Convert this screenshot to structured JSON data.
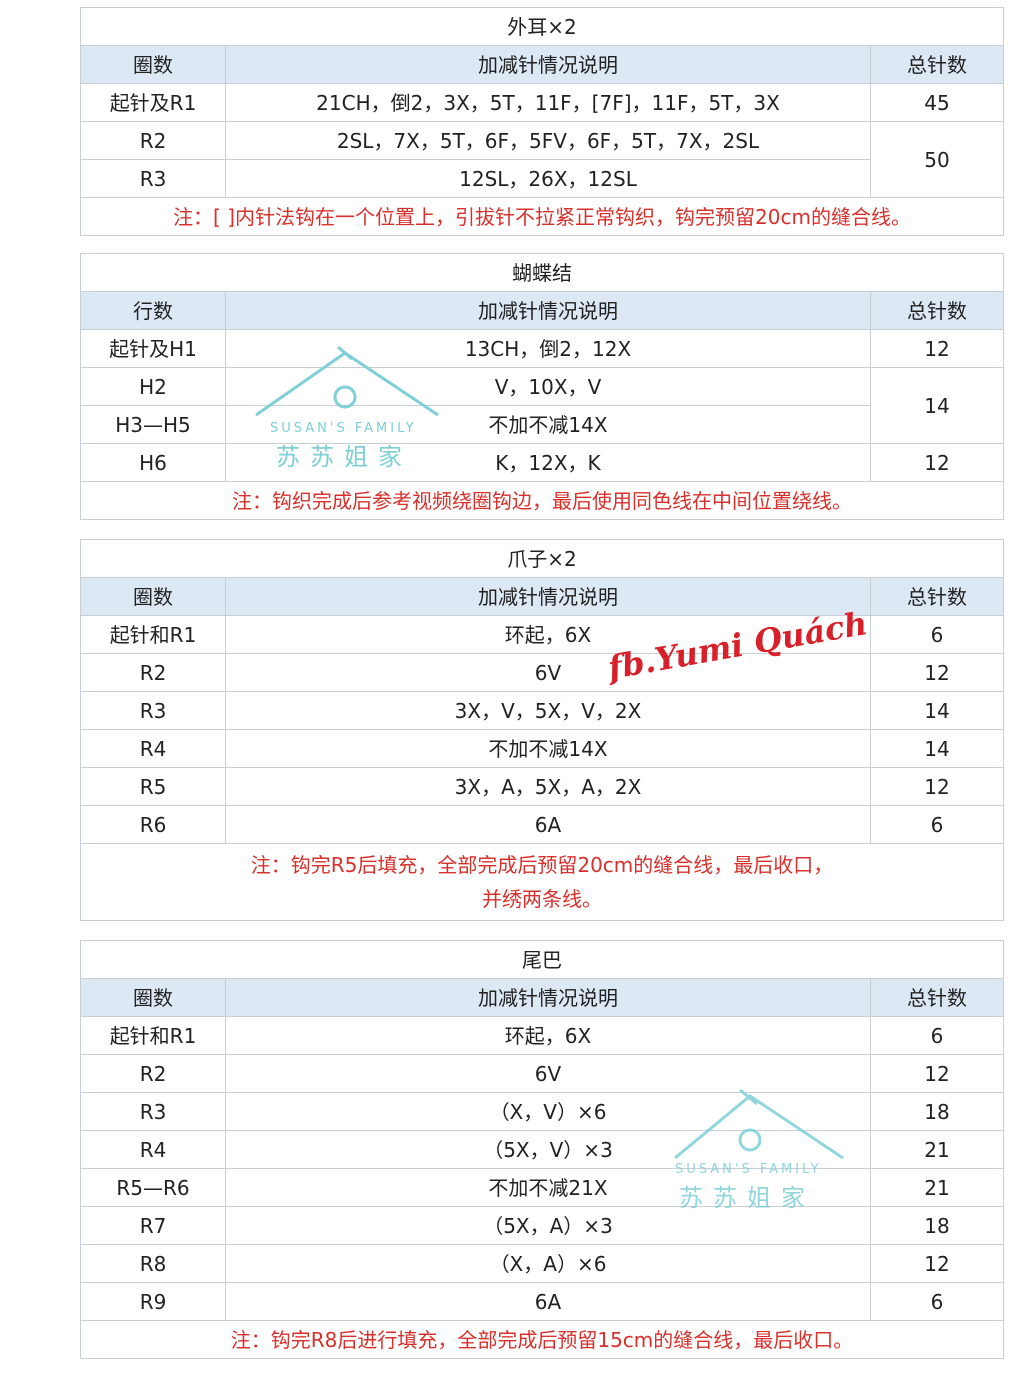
{
  "columns": {
    "round": "圈数",
    "row": "行数",
    "desc": "加减针情况说明",
    "total": "总针数"
  },
  "colors": {
    "header_bg": "#dce8f4",
    "note_text": "#d9302c",
    "watermark": "#7ecfd6",
    "signature": "#d8202a"
  },
  "tables": [
    {
      "title": "外耳×2",
      "first_col": "圈数",
      "rows": [
        {
          "round": "起针及R1",
          "desc": "21CH，倒2，3X，5T，11F，[7F]，11F，5T，3X",
          "total": "45",
          "span": 1
        },
        {
          "round": "R2",
          "desc": "2SL，7X，5T，6F，5FV，6F，5T，7X，2SL",
          "total": "50",
          "span": 2
        },
        {
          "round": "R3",
          "desc": "12SL，26X，12SL"
        }
      ],
      "note": [
        "注：[ ]内针法钩在一个位置上，引拔针不拉紧正常钩织，钩完预留20cm的缝合线。"
      ]
    },
    {
      "title": "蝴蝶结",
      "first_col": "行数",
      "rows": [
        {
          "round": "起针及H1",
          "desc": "13CH，倒2，12X",
          "total": "12",
          "span": 1
        },
        {
          "round": "H2",
          "desc": "V，10X，V",
          "total": "14",
          "span": 2
        },
        {
          "round": "H3—H5",
          "desc": "不加不减14X"
        },
        {
          "round": "H6",
          "desc": "K，12X，K",
          "total": "12",
          "span": 1
        }
      ],
      "note": [
        "注：钩织完成后参考视频绕圈钩边，最后使用同色线在中间位置绕线。"
      ]
    },
    {
      "title": "爪子×2",
      "first_col": "圈数",
      "rows": [
        {
          "round": "起针和R1",
          "desc": "环起，6X",
          "total": "6",
          "span": 1
        },
        {
          "round": "R2",
          "desc": "6V",
          "total": "12",
          "span": 1
        },
        {
          "round": "R3",
          "desc": "3X，V，5X，V，2X",
          "total": "14",
          "span": 1
        },
        {
          "round": "R4",
          "desc": "不加不减14X",
          "total": "14",
          "span": 1
        },
        {
          "round": "R5",
          "desc": "3X，A，5X，A，2X",
          "total": "12",
          "span": 1
        },
        {
          "round": "R6",
          "desc": "6A",
          "total": "6",
          "span": 1
        }
      ],
      "note": [
        "注：钩完R5后填充，全部完成后预留20cm的缝合线，最后收口，",
        "并绣两条线。"
      ]
    },
    {
      "title": "尾巴",
      "first_col": "圈数",
      "rows": [
        {
          "round": "起针和R1",
          "desc": "环起，6X",
          "total": "6",
          "span": 1
        },
        {
          "round": "R2",
          "desc": "6V",
          "total": "12",
          "span": 1
        },
        {
          "round": "R3",
          "desc": "（X，V）×6",
          "total": "18",
          "span": 1
        },
        {
          "round": "R4",
          "desc": "（5X，V）×3",
          "total": "21",
          "span": 1
        },
        {
          "round": "R5—R6",
          "desc": "不加不减21X",
          "total": "21",
          "span": 1
        },
        {
          "round": "R7",
          "desc": "（5X，A）×3",
          "total": "18",
          "span": 1
        },
        {
          "round": "R8",
          "desc": "（X，A）×6",
          "total": "12",
          "span": 1
        },
        {
          "round": "R9",
          "desc": "6A",
          "total": "6",
          "span": 1
        }
      ],
      "note": [
        "注：钩完R8后进行填充，全部完成后预留15cm的缝合线，最后收口。"
      ]
    }
  ],
  "watermarks": {
    "logo_en": "SUSAN'S FAMILY",
    "logo_cn": "苏苏姐家",
    "signature": "fb.Yumi Quách"
  }
}
